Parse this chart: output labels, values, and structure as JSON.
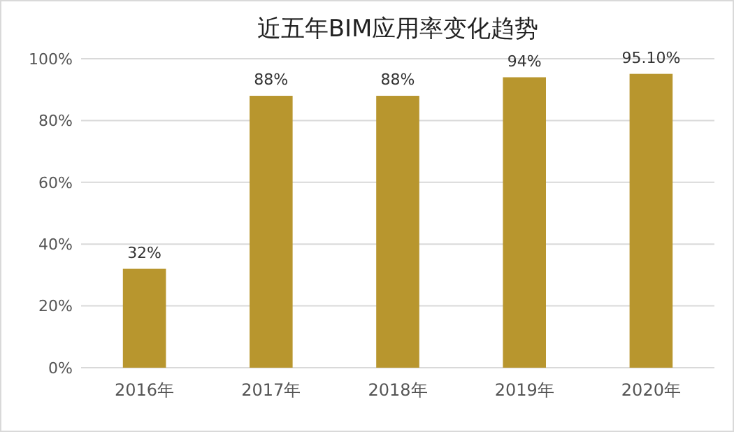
{
  "chart_data": {
    "type": "bar",
    "title": "近五年BIM应用率变化趋势",
    "categories": [
      "2016年",
      "2017年",
      "2018年",
      "2019年",
      "2020年"
    ],
    "values": [
      32,
      88,
      88,
      94,
      95.1
    ],
    "color": "#b8962e",
    "value_labels": [
      "32%",
      "88%",
      "88%",
      "94%",
      "95.10%"
    ],
    "ylim": [
      0,
      100
    ],
    "yticks": [
      {
        "value": 0,
        "label": "0%"
      },
      {
        "value": 20,
        "label": "20%"
      },
      {
        "value": 40,
        "label": "40%"
      },
      {
        "value": 60,
        "label": "60%"
      },
      {
        "value": 80,
        "label": "80%"
      },
      {
        "value": 100,
        "label": "100%"
      }
    ],
    "grid": "y"
  }
}
